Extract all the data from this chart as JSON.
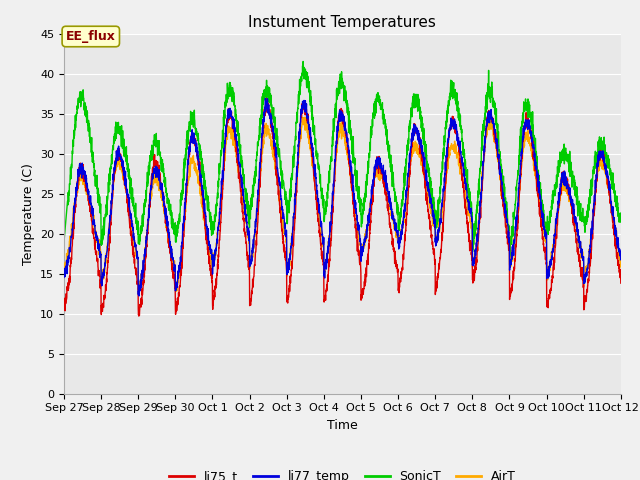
{
  "title": "Instument Temperatures",
  "xlabel": "Time",
  "ylabel": "Temperature (C)",
  "ylim": [
    0,
    45
  ],
  "series_colors": {
    "li75_t": "#dd0000",
    "li77_temp": "#0000dd",
    "SonicT": "#00cc00",
    "AirT": "#ffaa00"
  },
  "annotation": "EE_flux",
  "bg_color": "#f0f0f0",
  "plot_bg_color": "#e8e8e8",
  "title_fontsize": 11,
  "axis_fontsize": 9,
  "tick_fontsize": 8,
  "x_tick_labels": [
    "Sep 27",
    "Sep 28",
    "Sep 29",
    "Sep 30",
    "Oct 1",
    "Oct 2",
    "Oct 3",
    "Oct 4",
    "Oct 5",
    "Oct 6",
    "Oct 7",
    "Oct 8",
    "Oct 9",
    "Oct 10",
    "Oct 11",
    "Oct 12"
  ],
  "line_width": 1.0,
  "grid_color": "#ffffff",
  "peak_heights_SonicT": [
    37,
    33,
    31,
    34,
    38,
    38,
    40,
    39,
    37,
    37,
    38,
    38,
    36,
    30,
    31
  ],
  "peak_heights_li75_t": [
    28,
    30,
    29,
    32,
    35,
    36,
    36,
    35,
    29,
    33,
    34,
    35,
    34,
    27,
    30
  ],
  "peak_heights_li77_temp": [
    28,
    30,
    28,
    32,
    35,
    36,
    36,
    35,
    29,
    33,
    34,
    35,
    34,
    27,
    30
  ],
  "peak_heights_AirT": [
    27,
    29,
    27,
    29,
    33,
    33,
    34,
    33,
    28,
    31,
    31,
    34,
    32,
    26,
    29
  ],
  "min_temps_li75_t": [
    10,
    9,
    9,
    9,
    10,
    10,
    10,
    10,
    11,
    12,
    12,
    13,
    11,
    10,
    10
  ],
  "min_temps_SonicT": [
    19,
    17,
    17,
    17,
    17,
    20,
    19,
    19,
    19,
    18,
    18,
    15,
    15,
    19,
    19
  ],
  "min_temps_li77_temp": [
    14,
    13,
    12,
    12,
    15,
    15,
    14,
    14,
    17,
    18,
    18,
    15,
    15,
    14,
    13
  ],
  "min_temps_AirT": [
    15,
    13,
    12,
    12,
    15,
    15,
    14,
    14,
    17,
    18,
    18,
    15,
    15,
    14,
    13
  ]
}
